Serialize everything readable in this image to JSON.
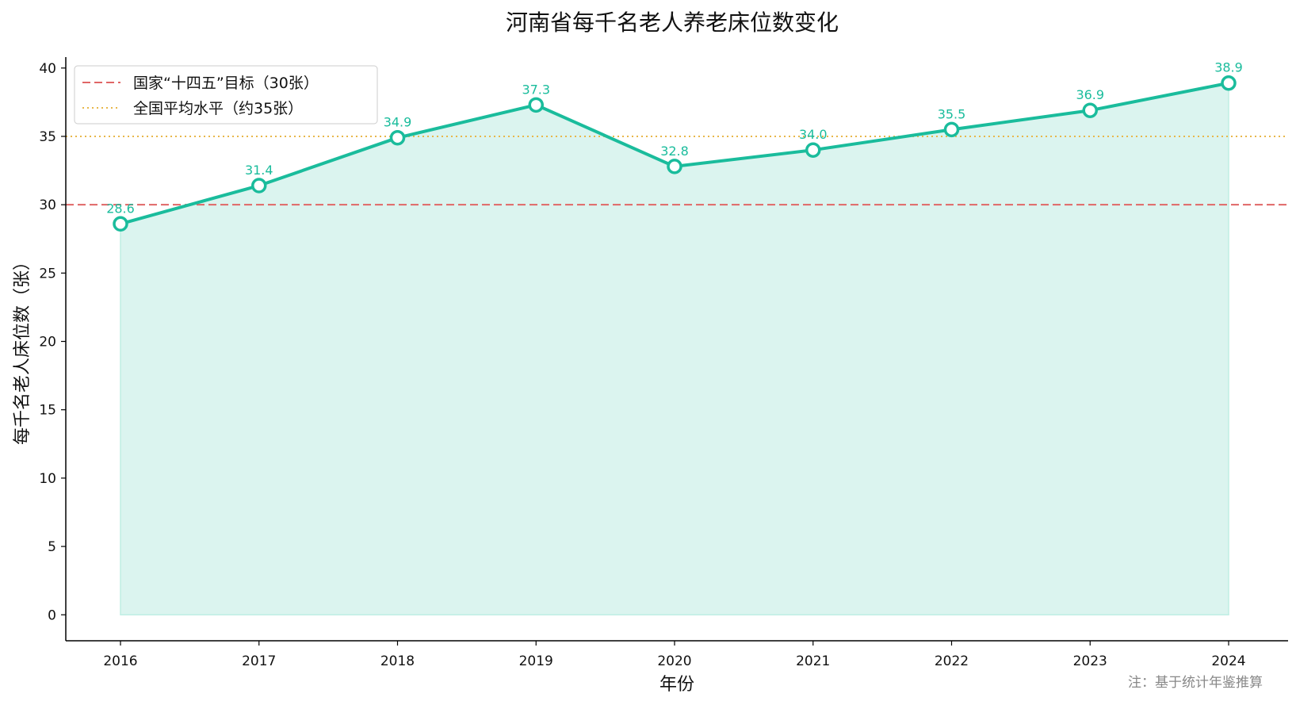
{
  "chart_data": {
    "type": "area",
    "title": "河南省每千名老人养老床位数变化",
    "xlabel": "年份",
    "ylabel": "每千名老人床位数（张）",
    "categories": [
      "2016",
      "2017",
      "2018",
      "2019",
      "2020",
      "2021",
      "2022",
      "2023",
      "2024"
    ],
    "series": [
      {
        "values": [
          28.6,
          31.4,
          34.9,
          37.3,
          32.8,
          34.0,
          35.5,
          36.9,
          38.9
        ],
        "data_labels": [
          "28.6",
          "31.4",
          "34.9",
          "37.3",
          "32.8",
          "34.0",
          "35.5",
          "36.9",
          "38.9"
        ],
        "color": "#1abc9c",
        "fill_color": "#dbf4ef"
      }
    ],
    "reference_lines": [
      {
        "name": "国家“十四五”目标（30张）",
        "value": 30,
        "style": "dashed",
        "color": "#e06666"
      },
      {
        "name": "全国平均水平（约35张）",
        "value": 35,
        "style": "dotted",
        "color": "#e8b74a"
      }
    ],
    "ylim": [
      -1.9,
      40.8
    ],
    "yticks": [
      "0",
      "5",
      "10",
      "15",
      "20",
      "25",
      "30",
      "35",
      "40"
    ],
    "grid": false,
    "legend_position": "top-left",
    "footnote": "注：基于统计年鉴推算"
  }
}
